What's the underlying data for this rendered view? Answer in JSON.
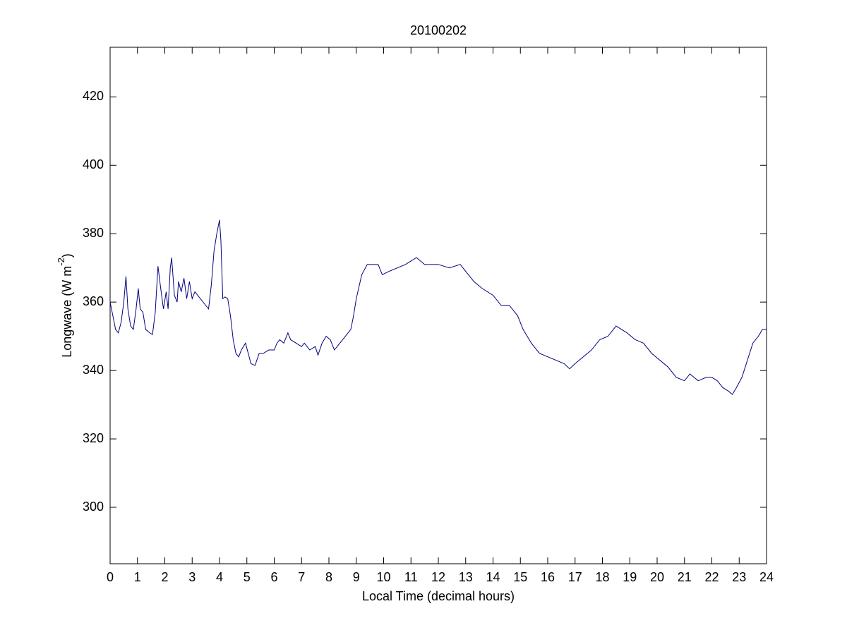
{
  "chart_data": {
    "type": "line",
    "title": "20100202",
    "xlabel": "Local Time (decimal hours)",
    "ylabel": {
      "text": "Longwave (W m",
      "sup": "-2",
      "tail": ")"
    },
    "xlim": [
      0,
      24
    ],
    "xticks": [
      0,
      1,
      2,
      3,
      4,
      5,
      6,
      7,
      8,
      9,
      10,
      11,
      12,
      13,
      14,
      15,
      16,
      17,
      18,
      19,
      20,
      21,
      22,
      23,
      24
    ],
    "ylim": [
      283.5,
      434.5
    ],
    "yticks": [
      300,
      320,
      340,
      360,
      380,
      400,
      420
    ],
    "grid": false,
    "series": [
      {
        "color": "#000080",
        "x": [
          0,
          0.1,
          0.2,
          0.3,
          0.4,
          0.5,
          0.58,
          0.65,
          0.75,
          0.85,
          0.95,
          1.03,
          1.1,
          1.2,
          1.3,
          1.45,
          1.55,
          1.65,
          1.75,
          1.85,
          1.95,
          2.05,
          2.12,
          2.2,
          2.25,
          2.35,
          2.45,
          2.5,
          2.6,
          2.7,
          2.8,
          2.9,
          3.0,
          3.1,
          3.3,
          3.5,
          3.6,
          3.7,
          3.8,
          3.9,
          4.0,
          4.05,
          4.12,
          4.2,
          4.3,
          4.4,
          4.5,
          4.6,
          4.7,
          4.8,
          4.95,
          5.05,
          5.15,
          5.3,
          5.45,
          5.6,
          5.8,
          6.0,
          6.1,
          6.2,
          6.35,
          6.5,
          6.6,
          6.8,
          7.0,
          7.1,
          7.3,
          7.5,
          7.6,
          7.75,
          7.9,
          8.05,
          8.2,
          8.4,
          8.6,
          8.8,
          8.9,
          9.0,
          9.2,
          9.4,
          9.6,
          9.8,
          9.95,
          10.2,
          10.5,
          10.8,
          11.0,
          11.2,
          11.5,
          11.8,
          12.0,
          12.4,
          12.8,
          13.0,
          13.3,
          13.6,
          14.0,
          14.3,
          14.6,
          14.9,
          15.1,
          15.4,
          15.7,
          16.0,
          16.3,
          16.6,
          16.8,
          17.0,
          17.3,
          17.6,
          17.9,
          18.2,
          18.5,
          18.7,
          18.9,
          19.2,
          19.5,
          19.8,
          20.1,
          20.4,
          20.7,
          21.0,
          21.2,
          21.5,
          21.8,
          22.0,
          22.2,
          22.4,
          22.6,
          22.75,
          22.9,
          23.1,
          23.3,
          23.5,
          23.7,
          23.85,
          24.0
        ],
        "values": [
          360,
          356,
          352,
          351,
          354,
          360,
          367.5,
          358,
          353,
          352,
          358,
          364,
          358,
          357,
          352,
          351,
          350.5,
          357,
          370.5,
          364,
          358,
          363,
          358,
          370,
          373,
          362,
          360,
          366,
          363,
          367,
          361,
          366,
          361,
          363,
          361,
          359,
          358,
          365,
          375,
          380,
          384,
          378,
          361,
          361.5,
          361,
          356,
          349,
          345,
          344,
          346,
          348,
          345,
          342,
          341.5,
          345,
          345,
          346,
          346,
          348,
          349,
          348,
          351,
          349,
          348,
          347,
          348,
          346,
          347,
          344.5,
          348,
          350,
          349,
          346,
          348,
          350,
          352,
          356,
          361,
          368,
          371,
          371,
          371,
          368,
          369,
          370,
          371,
          372,
          373,
          371,
          371,
          371,
          370,
          371,
          369,
          366,
          364,
          362,
          359,
          359,
          356,
          352,
          348,
          345,
          344,
          343,
          342,
          340.5,
          342,
          344,
          346,
          349,
          350,
          353,
          352,
          351,
          349,
          348,
          345,
          343,
          341,
          338,
          337,
          339,
          337,
          338,
          338,
          337,
          335,
          334,
          333,
          335,
          338,
          343,
          348,
          350,
          352,
          352
        ]
      }
    ]
  }
}
